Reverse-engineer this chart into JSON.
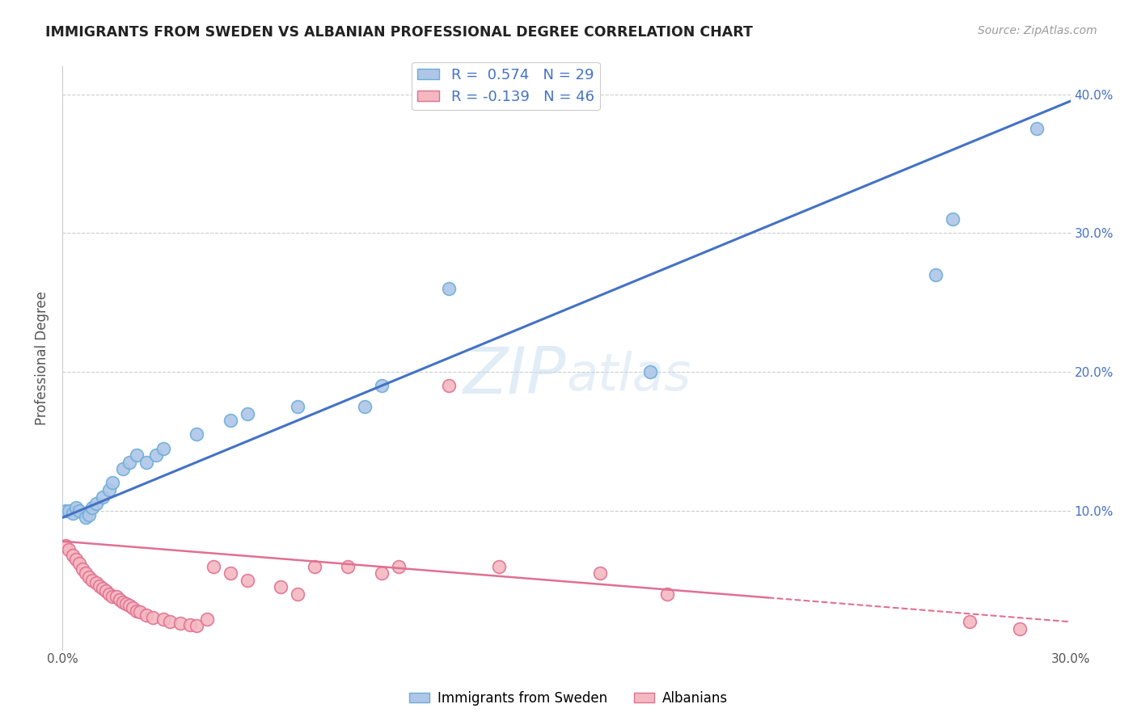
{
  "title": "IMMIGRANTS FROM SWEDEN VS ALBANIAN PROFESSIONAL DEGREE CORRELATION CHART",
  "source": "Source: ZipAtlas.com",
  "ylabel": "Professional Degree",
  "xlim": [
    0.0,
    0.3
  ],
  "ylim": [
    0.0,
    0.42
  ],
  "sweden_color": "#aec6e8",
  "sweden_edge": "#6baed6",
  "albanian_color": "#f4b8c1",
  "albanian_edge": "#e07090",
  "sweden_line_color": "#4472c4",
  "albanian_line_color": "#e07090",
  "background_color": "#ffffff",
  "grid_color": "#cccccc",
  "sweden_x": [
    0.001,
    0.002,
    0.003,
    0.004,
    0.005,
    0.007,
    0.008,
    0.009,
    0.01,
    0.012,
    0.014,
    0.015,
    0.018,
    0.02,
    0.022,
    0.025,
    0.028,
    0.03,
    0.04,
    0.05,
    0.055,
    0.07,
    0.09,
    0.095,
    0.115,
    0.175,
    0.26,
    0.265,
    0.29
  ],
  "sweden_y": [
    0.1,
    0.1,
    0.098,
    0.102,
    0.1,
    0.095,
    0.097,
    0.102,
    0.105,
    0.11,
    0.115,
    0.12,
    0.13,
    0.135,
    0.14,
    0.135,
    0.14,
    0.145,
    0.155,
    0.165,
    0.17,
    0.175,
    0.175,
    0.19,
    0.26,
    0.2,
    0.27,
    0.31,
    0.375
  ],
  "albanian_x": [
    0.001,
    0.002,
    0.003,
    0.004,
    0.005,
    0.006,
    0.007,
    0.008,
    0.009,
    0.01,
    0.011,
    0.012,
    0.013,
    0.014,
    0.015,
    0.016,
    0.017,
    0.018,
    0.019,
    0.02,
    0.021,
    0.022,
    0.023,
    0.025,
    0.027,
    0.03,
    0.032,
    0.035,
    0.038,
    0.04,
    0.043,
    0.045,
    0.05,
    0.055,
    0.065,
    0.07,
    0.075,
    0.085,
    0.095,
    0.1,
    0.115,
    0.13,
    0.16,
    0.18,
    0.27,
    0.285
  ],
  "albanian_y": [
    0.075,
    0.072,
    0.068,
    0.065,
    0.062,
    0.058,
    0.055,
    0.052,
    0.05,
    0.048,
    0.046,
    0.044,
    0.042,
    0.04,
    0.038,
    0.038,
    0.036,
    0.034,
    0.033,
    0.032,
    0.03,
    0.028,
    0.027,
    0.025,
    0.023,
    0.022,
    0.02,
    0.019,
    0.018,
    0.017,
    0.022,
    0.06,
    0.055,
    0.05,
    0.045,
    0.04,
    0.06,
    0.06,
    0.055,
    0.06,
    0.19,
    0.06,
    0.055,
    0.04,
    0.02,
    0.015
  ],
  "sweden_r": 0.574,
  "sweden_n": 29,
  "albanian_r": -0.139,
  "albanian_n": 46,
  "sweden_line_x0": 0.0,
  "sweden_line_y0": 0.095,
  "sweden_line_x1": 0.3,
  "sweden_line_y1": 0.395,
  "albanian_line_x0": 0.0,
  "albanian_line_y0": 0.078,
  "albanian_line_x1": 0.3,
  "albanian_line_y1": 0.02
}
